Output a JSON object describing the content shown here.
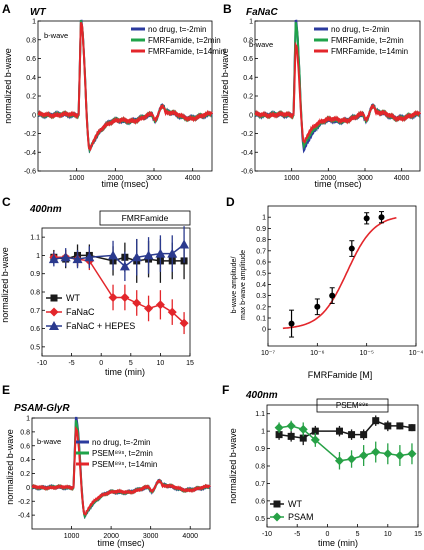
{
  "chart_data": [
    {
      "id": "A",
      "panel_label": "A",
      "type": "line",
      "title": "WT",
      "xlabel": "time (msec)",
      "ylabel": "normalized b-wave",
      "xlim": [
        0,
        4500
      ],
      "ylim": [
        -0.6,
        1.0
      ],
      "xticks": [
        1000,
        2000,
        3000,
        4000
      ],
      "yticks": [
        -0.6,
        -0.4,
        -0.2,
        0,
        0.2,
        0.4,
        0.6,
        0.8,
        1
      ],
      "annotation": "b-wave",
      "legend_position": "top-right",
      "series": [
        {
          "name": "no drug, t=-2min",
          "color": "#2b3a9e"
        },
        {
          "name": "FMRFamide, t=2min",
          "color": "#1fa34a"
        },
        {
          "name": "FMRFamide, t=14min",
          "color": "#e3262b"
        }
      ]
    },
    {
      "id": "B",
      "panel_label": "B",
      "type": "line",
      "title": "FaNaC",
      "xlabel": "time (msec)",
      "ylabel": "normalized b-wave",
      "xlim": [
        0,
        4500
      ],
      "ylim": [
        -0.6,
        1.0
      ],
      "xticks": [
        1000,
        2000,
        3000,
        4000
      ],
      "yticks": [
        -0.6,
        -0.4,
        -0.2,
        0,
        0.2,
        0.4,
        0.6,
        0.8,
        1
      ],
      "annotation": "b-wave",
      "legend_position": "top-right",
      "series": [
        {
          "name": "no drug, t=-2min",
          "color": "#2b3a9e"
        },
        {
          "name": "FMRFamide, t=2min",
          "color": "#1fa34a"
        },
        {
          "name": "FMRFamide, t=14min",
          "color": "#e3262b"
        }
      ]
    },
    {
      "id": "C",
      "panel_label": "C",
      "type": "line",
      "title": "400nm",
      "drug_label": "FMRFamide",
      "drug_interval": [
        0,
        15
      ],
      "xlabel": "time (min)",
      "ylabel": "normalized b-wave",
      "xlim": [
        -10,
        15
      ],
      "ylim": [
        0.45,
        1.15
      ],
      "xticks": [
        -10,
        -5,
        0,
        5,
        10,
        15
      ],
      "yticks": [
        0.5,
        0.6,
        0.7,
        0.8,
        0.9,
        1,
        1.1
      ],
      "legend_position": "bottom-left",
      "x": [
        -8,
        -6,
        -4,
        -2,
        2,
        4,
        6,
        8,
        10,
        12,
        14
      ],
      "series": [
        {
          "name": "WT",
          "color": "#1a1a1a",
          "marker": "square",
          "values": [
            0.99,
            0.98,
            1.0,
            1.0,
            0.97,
            0.99,
            0.97,
            0.98,
            0.97,
            0.97,
            0.97
          ],
          "errors": [
            0.04,
            0.05,
            0.06,
            0.06,
            0.08,
            0.08,
            0.12,
            0.1,
            0.12,
            0.1,
            0.1
          ]
        },
        {
          "name": "FaNaC",
          "color": "#e3262b",
          "marker": "diamond",
          "values": [
            0.99,
            0.99,
            0.98,
            0.97,
            0.77,
            0.77,
            0.74,
            0.71,
            0.73,
            0.69,
            0.63
          ],
          "errors": [
            0.03,
            0.04,
            0.04,
            0.05,
            0.07,
            0.07,
            0.07,
            0.07,
            0.08,
            0.07,
            0.06
          ]
        },
        {
          "name": "FaNaC + HEPES",
          "color": "#2b3a8e",
          "marker": "triangle",
          "values": [
            0.98,
            0.99,
            0.98,
            0.99,
            1.0,
            0.94,
            0.99,
            1.0,
            1.01,
            1.01,
            1.06
          ],
          "errors": [
            0.04,
            0.05,
            0.05,
            0.06,
            0.08,
            0.08,
            0.1,
            0.1,
            0.1,
            0.1,
            0.1
          ]
        }
      ]
    },
    {
      "id": "D",
      "panel_label": "D",
      "type": "scatter",
      "xlabel": "FMRFamide [M]",
      "ylabel_line1": "b-wave amplitude/",
      "ylabel_line2": "max b-wave amplitude",
      "x_scale": "log",
      "xlim": [
        1e-07,
        0.0001
      ],
      "ylim": [
        -0.15,
        1.1
      ],
      "xtick_labels": [
        "10⁻⁷",
        "10⁻⁶",
        "10⁻⁵",
        "10⁻⁴"
      ],
      "yticks": [
        0,
        0.1,
        0.2,
        0.3,
        0.4,
        0.5,
        0.6,
        0.7,
        0.8,
        0.9,
        1
      ],
      "points": [
        {
          "x": 3e-07,
          "y": 0.05,
          "err": 0.12
        },
        {
          "x": 1e-06,
          "y": 0.2,
          "err": 0.07
        },
        {
          "x": 2e-06,
          "y": 0.3,
          "err": 0.07
        },
        {
          "x": 5e-06,
          "y": 0.72,
          "err": 0.07
        },
        {
          "x": 1e-05,
          "y": 0.99,
          "err": 0.05
        },
        {
          "x": 2e-05,
          "y": 1.0,
          "err": 0.05
        }
      ],
      "fit": {
        "ec50": 4e-06,
        "hill": 1.6,
        "bottom": 0.0,
        "top": 1.02,
        "color": "#e3262b"
      }
    },
    {
      "id": "E",
      "panel_label": "E",
      "type": "line",
      "title": "PSAM-GlyR",
      "xlabel": "time (msec)",
      "ylabel": "normalized b-wave",
      "xlim": [
        0,
        4500
      ],
      "ylim": [
        -0.6,
        1.0
      ],
      "xticks": [
        1000,
        2000,
        3000,
        4000
      ],
      "yticks": [
        -0.6,
        -0.4,
        -0.2,
        0,
        0.2,
        0.4,
        0.6,
        0.8,
        1
      ],
      "annotation": "b-wave",
      "legend_position": "top-right",
      "series": [
        {
          "name": "no drug, t=-2min",
          "color": "#2b3a9e"
        },
        {
          "name": "PSEM⁸⁹ˢ, t=2min",
          "color": "#1fa34a"
        },
        {
          "name": "PSEM⁸⁹ˢ, t=14min",
          "color": "#e3262b"
        }
      ]
    },
    {
      "id": "F",
      "panel_label": "F",
      "type": "line",
      "title": "400nm",
      "drug_label": "PSEM⁸⁹ˢ",
      "drug_interval": [
        0,
        15
      ],
      "xlabel": "time (min)",
      "ylabel": "normalized b-wave",
      "xlim": [
        -10,
        15
      ],
      "ylim": [
        0.45,
        1.15
      ],
      "xticks": [
        -10,
        -5,
        0,
        5,
        10,
        15
      ],
      "yticks": [
        0.5,
        0.6,
        0.7,
        0.8,
        0.9,
        1,
        1.1
      ],
      "legend_position": "bottom-left",
      "x": [
        -8,
        -6,
        -4,
        -2,
        2,
        4,
        6,
        8,
        10,
        12,
        14
      ],
      "series": [
        {
          "name": "WT",
          "color": "#1a1a1a",
          "marker": "square",
          "values": [
            0.98,
            0.97,
            0.96,
            1.0,
            1.0,
            0.98,
            0.98,
            1.06,
            1.03,
            1.03,
            1.02
          ],
          "errors": [
            0.03,
            0.03,
            0.04,
            0.03,
            0.03,
            0.03,
            0.03,
            0.03,
            0.03,
            0.02,
            0.02
          ]
        },
        {
          "name": "PSAM",
          "color": "#27a146",
          "marker": "diamond",
          "values": [
            1.02,
            1.03,
            1.01,
            0.95,
            0.83,
            0.84,
            0.86,
            0.88,
            0.87,
            0.86,
            0.87
          ],
          "errors": [
            0.03,
            0.03,
            0.04,
            0.04,
            0.05,
            0.05,
            0.06,
            0.06,
            0.06,
            0.06,
            0.06
          ]
        }
      ]
    }
  ]
}
